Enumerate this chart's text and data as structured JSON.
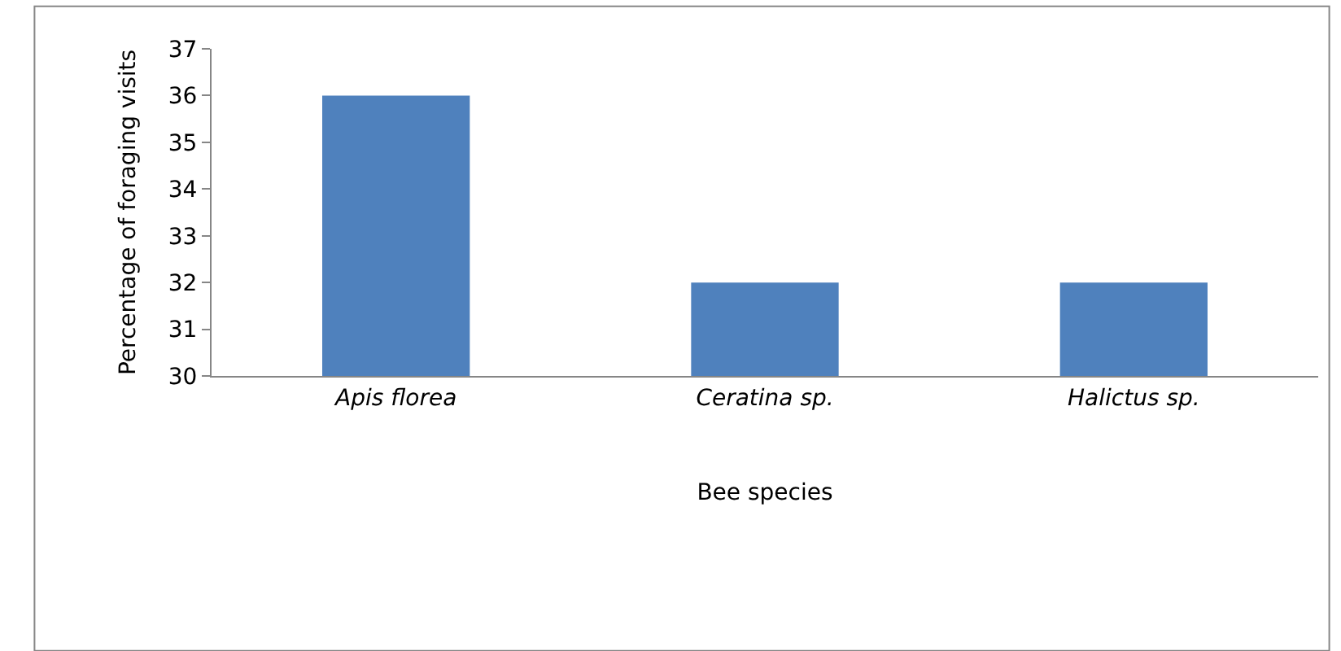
{
  "chart_data": {
    "type": "bar",
    "xlabel": "Bee species",
    "ylabel": "Percentage of foraging visits",
    "categories": [
      "Apis florea",
      "Ceratina sp.",
      "Halictus sp."
    ],
    "values": [
      36,
      32,
      32
    ],
    "color": "#4f81bd",
    "ylim": [
      30,
      37
    ],
    "yticks": [
      30,
      31,
      32,
      33,
      34,
      35,
      36,
      37
    ]
  }
}
